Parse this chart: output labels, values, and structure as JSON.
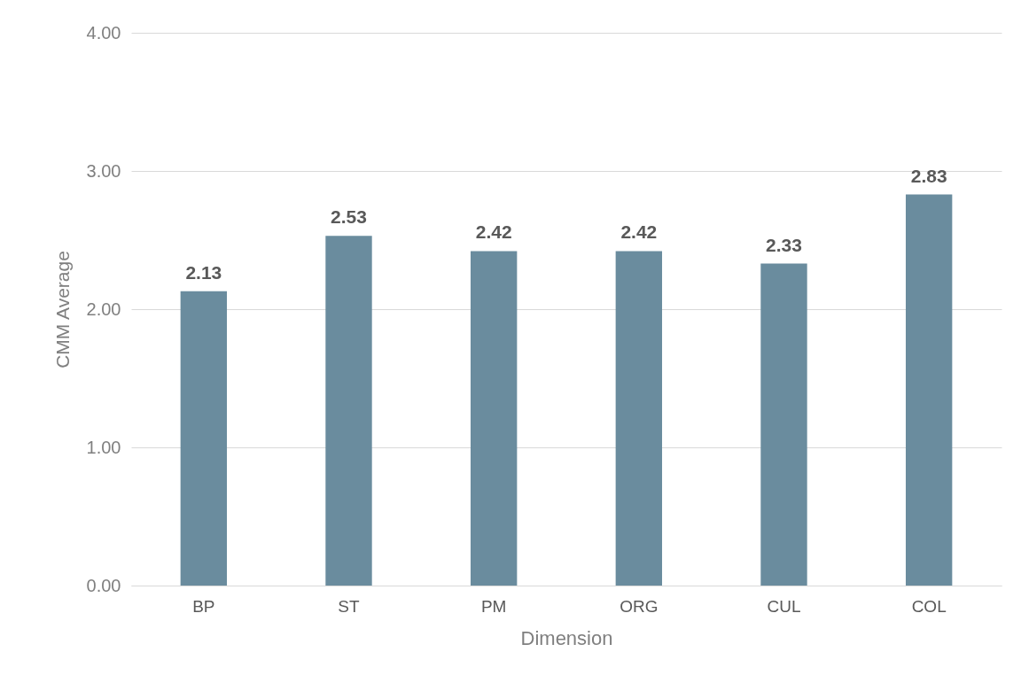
{
  "chart_data": {
    "type": "bar",
    "xlabel": "Dimension",
    "ylabel": "CMM Average",
    "categories": [
      "BP",
      "ST",
      "PM",
      "ORG",
      "CUL",
      "COL"
    ],
    "values": [
      2.13,
      2.53,
      2.42,
      2.42,
      2.33,
      2.83
    ],
    "color": "#6a8c9e",
    "ylim": [
      0,
      4
    ],
    "yticks": [
      {
        "value": 0,
        "label": "0.00"
      },
      {
        "value": 1,
        "label": "1.00"
      },
      {
        "value": 2,
        "label": "2.00"
      },
      {
        "value": 3,
        "label": "3.00"
      },
      {
        "value": 4,
        "label": "4.00"
      }
    ],
    "grid": "y",
    "data_labels": true
  }
}
